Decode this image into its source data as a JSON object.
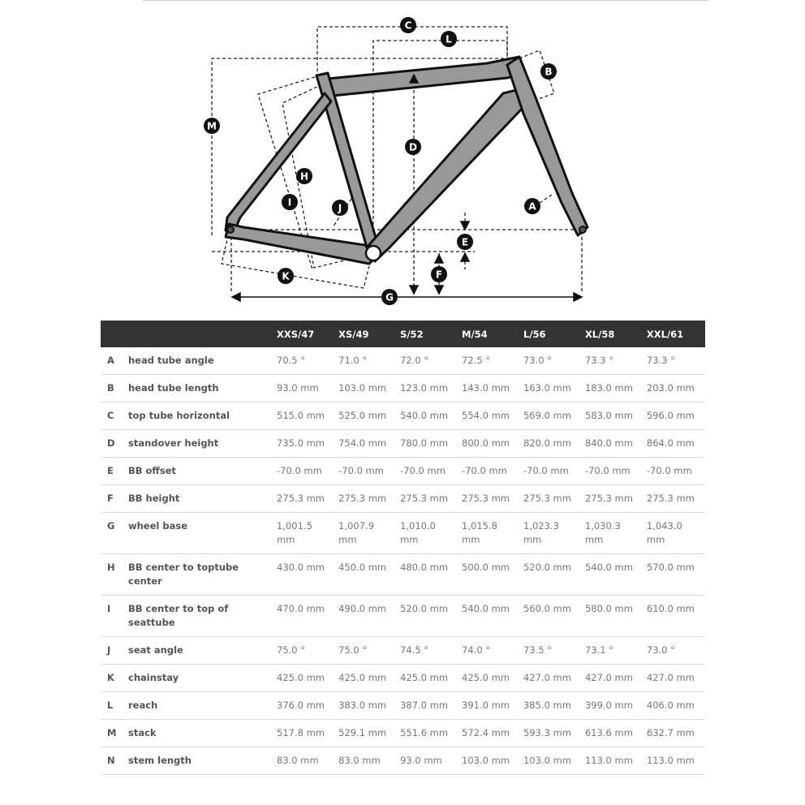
{
  "diagram": {
    "labels": [
      "A",
      "B",
      "C",
      "D",
      "E",
      "F",
      "G",
      "H",
      "I",
      "J",
      "K",
      "L",
      "M"
    ],
    "frame_color": "#999999",
    "marker_color": "#111111"
  },
  "table": {
    "sizes": [
      "XXS/47",
      "XS/49",
      "S/52",
      "M/54",
      "L/56",
      "XL/58",
      "XXL/61"
    ],
    "rows": [
      {
        "key": "A",
        "name": "head tube angle",
        "values": [
          "70.5 °",
          "71.0 °",
          "72.0 °",
          "72.5 °",
          "73.0 °",
          "73.3 °",
          "73.3 °"
        ]
      },
      {
        "key": "B",
        "name": "head tube length",
        "values": [
          "93.0 mm",
          "103.0 mm",
          "123.0 mm",
          "143.0 mm",
          "163.0 mm",
          "183.0 mm",
          "203.0 mm"
        ]
      },
      {
        "key": "C",
        "name": "top tube horizontal",
        "values": [
          "515.0 mm",
          "525.0 mm",
          "540.0 mm",
          "554.0 mm",
          "569.0 mm",
          "583.0 mm",
          "596.0 mm"
        ]
      },
      {
        "key": "D",
        "name": "standover height",
        "values": [
          "735.0 mm",
          "754.0 mm",
          "780.0 mm",
          "800.0 mm",
          "820.0 mm",
          "840.0 mm",
          "864.0 mm"
        ]
      },
      {
        "key": "E",
        "name": "BB offset",
        "values": [
          "-70.0 mm",
          "-70.0 mm",
          "-70.0 mm",
          "-70.0 mm",
          "-70.0 mm",
          "-70.0 mm",
          "-70.0 mm"
        ]
      },
      {
        "key": "F",
        "name": "BB height",
        "values": [
          "275.3 mm",
          "275.3 mm",
          "275.3 mm",
          "275.3 mm",
          "275.3 mm",
          "275.3 mm",
          "275.3 mm"
        ]
      },
      {
        "key": "G",
        "name": "wheel base",
        "values": [
          "1,001.5 mm",
          "1,007.9 mm",
          "1,010.0 mm",
          "1,015.8 mm",
          "1,023.3 mm",
          "1,030.3 mm",
          "1,043.0 mm"
        ]
      },
      {
        "key": "H",
        "name": "BB center to toptube center",
        "values": [
          "430.0 mm",
          "450.0 mm",
          "480.0 mm",
          "500.0 mm",
          "520.0 mm",
          "540.0 mm",
          "570.0 mm"
        ]
      },
      {
        "key": "I",
        "name": "BB center to top of seattube",
        "values": [
          "470.0 mm",
          "490.0 mm",
          "520.0 mm",
          "540.0 mm",
          "560.0 mm",
          "580.0 mm",
          "610.0 mm"
        ]
      },
      {
        "key": "J",
        "name": "seat angle",
        "values": [
          "75.0 °",
          "75.0 °",
          "74.5 °",
          "74.0 °",
          "73.5 °",
          "73.1 °",
          "73.0 °"
        ]
      },
      {
        "key": "K",
        "name": "chainstay",
        "values": [
          "425.0 mm",
          "425.0 mm",
          "425.0 mm",
          "425.0 mm",
          "427.0 mm",
          "427.0 mm",
          "427.0 mm"
        ]
      },
      {
        "key": "L",
        "name": "reach",
        "values": [
          "376.0 mm",
          "383.0 mm",
          "387.0 mm",
          "391.0 mm",
          "385.0 mm",
          "399.0 mm",
          "406.0 mm"
        ]
      },
      {
        "key": "M",
        "name": "stack",
        "values": [
          "517.8 mm",
          "529.1 mm",
          "551.6 mm",
          "572.4 mm",
          "593.3 mm",
          "613.6 mm",
          "632.7 mm"
        ]
      },
      {
        "key": "N",
        "name": "stem length",
        "values": [
          "83.0 mm",
          "83.0 mm",
          "93.0 mm",
          "103.0 mm",
          "103.0 mm",
          "113.0 mm",
          "113.0 mm"
        ]
      }
    ]
  }
}
